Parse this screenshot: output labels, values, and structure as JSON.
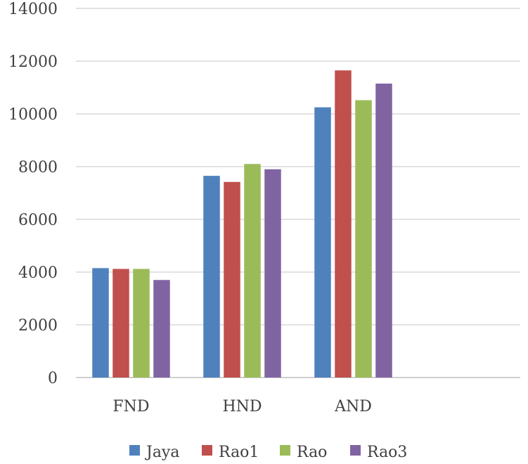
{
  "chart_data": {
    "type": "bar",
    "categories": [
      "FND",
      "HND",
      "AND"
    ],
    "series": [
      {
        "name": "Jaya",
        "color": "#4f81bd",
        "values": [
          4150,
          7650,
          10250
        ]
      },
      {
        "name": "Rao1",
        "color": "#c0504d",
        "values": [
          4120,
          7420,
          11650
        ]
      },
      {
        "name": "Rao",
        "color": "#9bbb59",
        "values": [
          4120,
          8100,
          10520
        ]
      },
      {
        "name": "Rao3",
        "color": "#8064a2",
        "values": [
          3700,
          7900,
          11150
        ]
      }
    ],
    "yticks": [
      "0",
      "2000",
      "4000",
      "6000",
      "8000",
      "10000",
      "12000",
      "14000"
    ],
    "ylim": [
      0,
      14000
    ],
    "grid": true,
    "legend": "bottom"
  }
}
